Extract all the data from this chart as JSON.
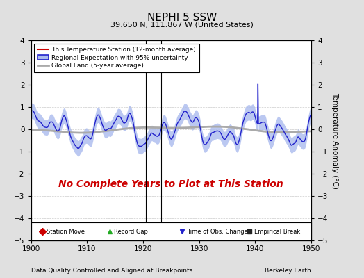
{
  "title": "NEPHI 5 SSW",
  "subtitle": "39.650 N, 111.867 W (United States)",
  "xmin": 1900,
  "xmax": 1950,
  "ymin": -5,
  "ymax": 4,
  "ylabel": "Temperature Anomaly (°C)",
  "annotation": "No Complete Years to Plot at This Station",
  "annotation_color": "#cc0000",
  "footer_left": "Data Quality Controlled and Aligned at Breakpoints",
  "footer_right": "Berkeley Earth",
  "bg_color": "#e0e0e0",
  "plot_bg_color": "#ffffff",
  "regional_color": "#2222cc",
  "regional_band_color": "#aabbee",
  "global_color": "#aaaaaa",
  "yticks": [
    -5,
    -4,
    -3,
    -2,
    -1,
    0,
    1,
    2,
    3,
    4
  ],
  "xticks": [
    1900,
    1910,
    1920,
    1930,
    1940,
    1950
  ],
  "vline_x1": 1920.5,
  "vline_x2": 1923.2,
  "gap_marker_x1": 1920.5,
  "gap_marker_x2": 1923.2,
  "gap_marker_y": -4.3,
  "legend_items": [
    {
      "label": "This Temperature Station (12-month average)",
      "color": "#cc0000",
      "lw": 1.5
    },
    {
      "label": "Regional Expectation with 95% uncertainty",
      "color": "#2222cc",
      "band_color": "#aabbee"
    },
    {
      "label": "Global Land (5-year average)",
      "color": "#aaaaaa",
      "lw": 2.0
    }
  ],
  "marker_legend": [
    {
      "label": "Station Move",
      "marker": "D",
      "color": "#cc0000"
    },
    {
      "label": "Record Gap",
      "marker": "^",
      "color": "#22aa22"
    },
    {
      "label": "Time of Obs. Change",
      "marker": "v",
      "color": "#2222cc"
    },
    {
      "label": "Empirical Break",
      "marker": "s",
      "color": "#222222"
    }
  ],
  "seed": 42
}
